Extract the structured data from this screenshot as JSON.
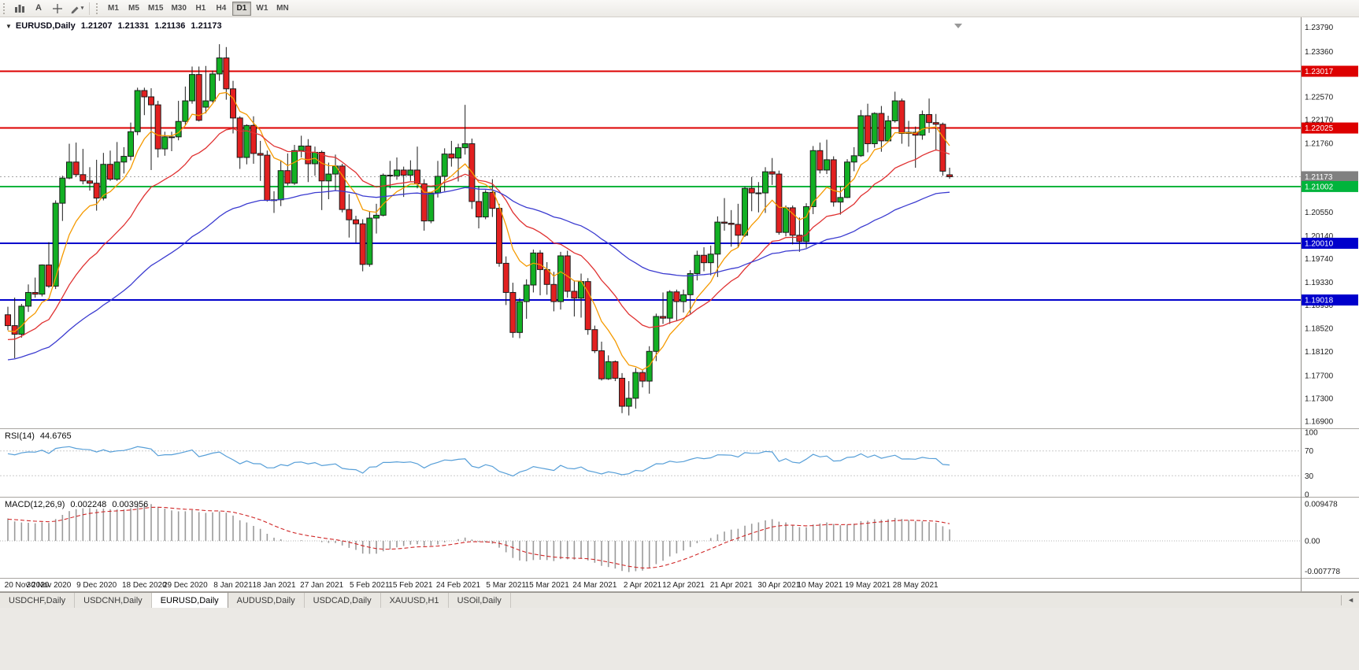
{
  "toolbar": {
    "buttons": [
      {
        "name": "bar-charts-icon"
      },
      {
        "name": "cursor-tool-icon",
        "glyph": "A"
      },
      {
        "name": "crosshair-icon"
      },
      {
        "name": "draw-tools-icon",
        "caret": "▾"
      }
    ],
    "timeframes": [
      "M1",
      "M5",
      "M15",
      "M30",
      "H1",
      "H4",
      "D1",
      "W1",
      "MN"
    ],
    "active_timeframe": "D1"
  },
  "chart_header": {
    "collapse_icon": "▼",
    "symbol": "EURUSD,Daily",
    "open": "1.21207",
    "high": "1.21331",
    "low": "1.21136",
    "close": "1.21173"
  },
  "chart_data": {
    "type": "candlestick",
    "symbol": "EURUSD",
    "timeframe": "Daily",
    "colors": {
      "up": "#12b024",
      "down": "#e22020",
      "outline": "#1b1b1b"
    },
    "y_axis": {
      "min": 1.1683,
      "max": 1.2385,
      "labels": [
        "1.23790",
        "1.23360",
        "1.22570",
        "1.22170",
        "1.21760",
        "1.20550",
        "1.20140",
        "1.19740",
        "1.19330",
        "1.18930",
        "1.18520",
        "1.18120",
        "1.17700",
        "1.17300",
        "1.16900"
      ],
      "badges": [
        {
          "text": "1.23017",
          "color": "#dd0000",
          "current": false
        },
        {
          "text": "1.22025",
          "color": "#dd0000",
          "current": false
        },
        {
          "text": "1.21173",
          "color": "#808080",
          "current": true
        },
        {
          "text": "1.21002",
          "color": "#00b43c",
          "current": false
        },
        {
          "text": "1.20010",
          "color": "#0000cc",
          "current": false
        },
        {
          "text": "1.19018",
          "color": "#0000cc",
          "current": false
        }
      ]
    },
    "levels": [
      {
        "price": 1.23017,
        "color": "#dd0000"
      },
      {
        "price": 1.22025,
        "color": "#dd0000"
      },
      {
        "price": 1.21002,
        "color": "#00b43c"
      },
      {
        "price": 1.2001,
        "color": "#0000cc"
      },
      {
        "price": 1.19018,
        "color": "#0000cc"
      }
    ],
    "current_price": 1.21173,
    "x_axis": {
      "label_indices": [
        0,
        6,
        13,
        20,
        26,
        33,
        39,
        46,
        53,
        59,
        66,
        73,
        79,
        86,
        93,
        99,
        106,
        113,
        119,
        126,
        133
      ],
      "labels": [
        "20 Nov 2020",
        "30 Nov 2020",
        "9 Dec 2020",
        "18 Dec 2020",
        "29 Dec 2020",
        "8 Jan 2021",
        "18 Jan 2021",
        "27 Jan 2021",
        "5 Feb 2021",
        "15 Feb 2021",
        "24 Feb 2021",
        "5 Mar 2021",
        "15 Mar 2021",
        "24 Mar 2021",
        "2 Apr 2021",
        "12 Apr 2021",
        "21 Apr 2021",
        "30 Apr 2021",
        "10 May 2021",
        "19 May 2021",
        "28 May 2021"
      ]
    },
    "moving_averages": [
      {
        "name": "fast",
        "period": 8,
        "color": "#f59a00",
        "seed": 1.1845
      },
      {
        "name": "medium",
        "period": 21,
        "color": "#e03232",
        "seed": 1.183
      },
      {
        "name": "slow",
        "period": 55,
        "color": "#3b3bd0",
        "seed": 1.1795
      }
    ],
    "rsi": {
      "label": "RSI(14)",
      "value": "44.6765",
      "period": 14,
      "color": "#579fd8",
      "levels": [
        70,
        30
      ],
      "axis_labels": [
        "100",
        "70",
        "30",
        "0"
      ],
      "seed_gain": 0.00265,
      "seed_loss": 0.0014
    },
    "macd": {
      "label": "MACD(12,26,9)",
      "main_value": "0.002248",
      "signal_value": "0.003956",
      "histogram_color": "#9a9a9a",
      "signal_color": "#d02828",
      "axis_labels": [
        "0.009478",
        "0.00",
        "-0.007778"
      ],
      "seed_ema12": 1.189,
      "seed_ema26": 1.1825,
      "seed_signal": 0.0055
    },
    "candles": [
      [
        1.1876,
        1.189,
        1.1849,
        1.1857
      ],
      [
        1.1857,
        1.1906,
        1.18,
        1.1842
      ],
      [
        1.1842,
        1.1895,
        1.1836,
        1.1891
      ],
      [
        1.1891,
        1.1929,
        1.1881,
        1.1915
      ],
      [
        1.1915,
        1.1941,
        1.1906,
        1.1912
      ],
      [
        1.1912,
        1.1964,
        1.1908,
        1.1963
      ],
      [
        1.1963,
        1.2003,
        1.1923,
        1.1926
      ],
      [
        1.1926,
        1.2076,
        1.1921,
        1.2071
      ],
      [
        1.2071,
        1.2119,
        1.204,
        1.2115
      ],
      [
        1.2115,
        1.2175,
        1.2113,
        1.2143
      ],
      [
        1.2143,
        1.2177,
        1.2117,
        1.2121
      ],
      [
        1.2121,
        1.2166,
        1.2104,
        1.211
      ],
      [
        1.211,
        1.2134,
        1.2093,
        1.2106
      ],
      [
        1.2106,
        1.2147,
        1.2058,
        1.208
      ],
      [
        1.208,
        1.2159,
        1.2076,
        1.2139
      ],
      [
        1.2139,
        1.2163,
        1.211,
        1.2113
      ],
      [
        1.2113,
        1.2178,
        1.211,
        1.2143
      ],
      [
        1.2143,
        1.2169,
        1.2123,
        1.2153
      ],
      [
        1.2153,
        1.2212,
        1.2146,
        1.2196
      ],
      [
        1.2196,
        1.2273,
        1.219,
        1.2268
      ],
      [
        1.2268,
        1.2273,
        1.2225,
        1.2257
      ],
      [
        1.2257,
        1.2272,
        1.2129,
        1.2243
      ],
      [
        1.2243,
        1.225,
        1.2151,
        1.2166
      ],
      [
        1.2166,
        1.2196,
        1.2154,
        1.2187
      ],
      [
        1.2187,
        1.2196,
        1.2162,
        1.2187
      ],
      [
        1.2187,
        1.225,
        1.2181,
        1.2214
      ],
      [
        1.2214,
        1.2275,
        1.2208,
        1.225
      ],
      [
        1.225,
        1.231,
        1.2245,
        1.2296
      ],
      [
        1.2296,
        1.231,
        1.2214,
        1.2216
      ],
      [
        1.2239,
        1.2311,
        1.2228,
        1.225
      ],
      [
        1.225,
        1.2303,
        1.2247,
        1.2297
      ],
      [
        1.2297,
        1.2349,
        1.2285,
        1.2325
      ],
      [
        1.2325,
        1.2344,
        1.2252,
        1.2271
      ],
      [
        1.2271,
        1.2285,
        1.2193,
        1.222
      ],
      [
        1.222,
        1.2223,
        1.2131,
        1.2151
      ],
      [
        1.2151,
        1.2209,
        1.2139,
        1.2207
      ],
      [
        1.2207,
        1.2223,
        1.214,
        1.2158
      ],
      [
        1.2158,
        1.218,
        1.211,
        1.2155
      ],
      [
        1.2155,
        1.2163,
        1.2074,
        1.2076
      ],
      [
        1.2076,
        1.2092,
        1.2054,
        1.2077
      ],
      [
        1.2077,
        1.2145,
        1.2066,
        1.2128
      ],
      [
        1.2128,
        1.2158,
        1.2102,
        1.2106
      ],
      [
        1.2106,
        1.2173,
        1.2103,
        1.2163
      ],
      [
        1.2163,
        1.2189,
        1.2151,
        1.2171
      ],
      [
        1.2171,
        1.2183,
        1.2108,
        1.214
      ],
      [
        1.214,
        1.217,
        1.2119,
        1.216
      ],
      [
        1.216,
        1.2163,
        1.2059,
        1.211
      ],
      [
        1.211,
        1.2142,
        1.2078,
        1.2122
      ],
      [
        1.2122,
        1.2156,
        1.2093,
        1.2136
      ],
      [
        1.2136,
        1.214,
        1.2055,
        1.206
      ],
      [
        1.206,
        1.2087,
        1.2011,
        1.2042
      ],
      [
        1.2042,
        1.2049,
        1.2002,
        1.2035
      ],
      [
        1.2035,
        1.2043,
        1.1952,
        1.1964
      ],
      [
        1.1964,
        1.2057,
        1.196,
        1.2045
      ],
      [
        1.2045,
        1.207,
        1.2018,
        1.205
      ],
      [
        1.205,
        1.2123,
        1.2048,
        1.212
      ],
      [
        1.212,
        1.2145,
        1.2097,
        1.2119
      ],
      [
        1.2119,
        1.2151,
        1.2112,
        1.2129
      ],
      [
        1.2129,
        1.2135,
        1.2082,
        1.212
      ],
      [
        1.212,
        1.2146,
        1.211,
        1.2129
      ],
      [
        1.2129,
        1.217,
        1.2097,
        1.2105
      ],
      [
        1.2105,
        1.2113,
        1.2023,
        1.204
      ],
      [
        1.204,
        1.209,
        1.2036,
        1.2089
      ],
      [
        1.2089,
        1.2145,
        1.2081,
        1.2118
      ],
      [
        1.2118,
        1.2167,
        1.2092,
        1.2157
      ],
      [
        1.2157,
        1.218,
        1.2135,
        1.215
      ],
      [
        1.215,
        1.2175,
        1.2109,
        1.2168
      ],
      [
        1.2168,
        1.2243,
        1.2156,
        1.2175
      ],
      [
        1.2175,
        1.2184,
        1.2061,
        1.2074
      ],
      [
        1.2074,
        1.2101,
        1.2027,
        1.2047
      ],
      [
        1.2047,
        1.2094,
        1.2043,
        1.209
      ],
      [
        1.209,
        1.2113,
        1.2047,
        1.2062
      ],
      [
        1.2062,
        1.207,
        1.196,
        1.1966
      ],
      [
        1.1966,
        1.1978,
        1.1893,
        1.1915
      ],
      [
        1.1915,
        1.1932,
        1.1836,
        1.1845
      ],
      [
        1.1845,
        1.1905,
        1.1835,
        1.1899
      ],
      [
        1.1899,
        1.1938,
        1.1869,
        1.1928
      ],
      [
        1.1928,
        1.199,
        1.1915,
        1.1984
      ],
      [
        1.1984,
        1.1989,
        1.191,
        1.1955
      ],
      [
        1.1955,
        1.1968,
        1.1911,
        1.1929
      ],
      [
        1.1929,
        1.1951,
        1.1882,
        1.1899
      ],
      [
        1.1899,
        1.1986,
        1.1885,
        1.1979
      ],
      [
        1.1979,
        1.1988,
        1.1906,
        1.1917
      ],
      [
        1.1917,
        1.1936,
        1.1873,
        1.1905
      ],
      [
        1.1905,
        1.1948,
        1.1871,
        1.1934
      ],
      [
        1.1934,
        1.194,
        1.1841,
        1.185
      ],
      [
        1.185,
        1.1857,
        1.1809,
        1.1813
      ],
      [
        1.1813,
        1.1829,
        1.1761,
        1.1764
      ],
      [
        1.1764,
        1.1805,
        1.1762,
        1.1794
      ],
      [
        1.1794,
        1.1796,
        1.176,
        1.1765
      ],
      [
        1.1765,
        1.1774,
        1.1704,
        1.1716
      ],
      [
        1.1716,
        1.176,
        1.17,
        1.173
      ],
      [
        1.173,
        1.1783,
        1.1712,
        1.1775
      ],
      [
        1.1775,
        1.178,
        1.1749,
        1.176
      ],
      [
        1.176,
        1.1821,
        1.1738,
        1.1812
      ],
      [
        1.1812,
        1.1878,
        1.1795,
        1.1873
      ],
      [
        1.1873,
        1.1915,
        1.186,
        1.187
      ],
      [
        1.187,
        1.1919,
        1.186,
        1.1916
      ],
      [
        1.1916,
        1.192,
        1.1865,
        1.1899
      ],
      [
        1.1899,
        1.192,
        1.188,
        1.1911
      ],
      [
        1.1911,
        1.1954,
        1.1878,
        1.1948
      ],
      [
        1.1948,
        1.1988,
        1.1936,
        1.198
      ],
      [
        1.198,
        1.1994,
        1.1952,
        1.1967
      ],
      [
        1.1967,
        1.1997,
        1.1945,
        1.1982
      ],
      [
        1.1982,
        1.2048,
        1.1942,
        1.2038
      ],
      [
        1.2038,
        1.208,
        1.2023,
        1.2036
      ],
      [
        1.2036,
        1.2059,
        1.1995,
        1.2034
      ],
      [
        1.2034,
        1.207,
        1.1993,
        1.2015
      ],
      [
        1.2015,
        1.21,
        1.2012,
        1.2097
      ],
      [
        1.2097,
        1.2117,
        1.2057,
        1.2089
      ],
      [
        1.2089,
        1.2108,
        1.2055,
        1.2089
      ],
      [
        1.2089,
        1.2134,
        1.2054,
        1.2126
      ],
      [
        1.2126,
        1.215,
        1.2103,
        1.2122
      ],
      [
        1.2122,
        1.2128,
        1.2016,
        1.202
      ],
      [
        1.202,
        1.2067,
        1.2013,
        1.2063
      ],
      [
        1.2063,
        1.2067,
        1.1999,
        1.2015
      ],
      [
        1.2015,
        1.2046,
        1.1986,
        1.2004
      ],
      [
        1.2004,
        1.2071,
        1.1993,
        1.2065
      ],
      [
        1.2065,
        1.2171,
        1.2052,
        1.2163
      ],
      [
        1.2163,
        1.2177,
        1.2123,
        1.2129
      ],
      [
        1.2129,
        1.2182,
        1.2122,
        1.2147
      ],
      [
        1.2147,
        1.2153,
        1.2065,
        1.2073
      ],
      [
        1.2073,
        1.21,
        1.2051,
        1.2081
      ],
      [
        1.2081,
        1.2148,
        1.208,
        1.2143
      ],
      [
        1.2143,
        1.2169,
        1.2127,
        1.2154
      ],
      [
        1.2154,
        1.2234,
        1.2152,
        1.2224
      ],
      [
        1.2224,
        1.2245,
        1.216,
        1.2175
      ],
      [
        1.2175,
        1.223,
        1.2168,
        1.2228
      ],
      [
        1.2228,
        1.2241,
        1.2161,
        1.218
      ],
      [
        1.218,
        1.2224,
        1.2178,
        1.2215
      ],
      [
        1.2215,
        1.2266,
        1.2212,
        1.225
      ],
      [
        1.225,
        1.2254,
        1.2175,
        1.2193
      ],
      [
        1.2193,
        1.2215,
        1.217,
        1.2195
      ],
      [
        1.2195,
        1.2205,
        1.2133,
        1.219
      ],
      [
        1.219,
        1.2233,
        1.2182,
        1.2226
      ],
      [
        1.2226,
        1.2254,
        1.2194,
        1.2212
      ],
      [
        1.2212,
        1.2227,
        1.2163,
        1.2209
      ],
      [
        1.2209,
        1.2212,
        1.2119,
        1.2127
      ],
      [
        1.21207,
        1.21331,
        1.21136,
        1.21173
      ]
    ]
  },
  "tabs": {
    "items": [
      "USDCHF,Daily",
      "USDCNH,Daily",
      "EURUSD,Daily",
      "AUDUSD,Daily",
      "USDCAD,Daily",
      "XAUUSD,H1",
      "USOil,Daily"
    ],
    "active": "EURUSD,Daily",
    "scroll_left_icon": "◄"
  }
}
